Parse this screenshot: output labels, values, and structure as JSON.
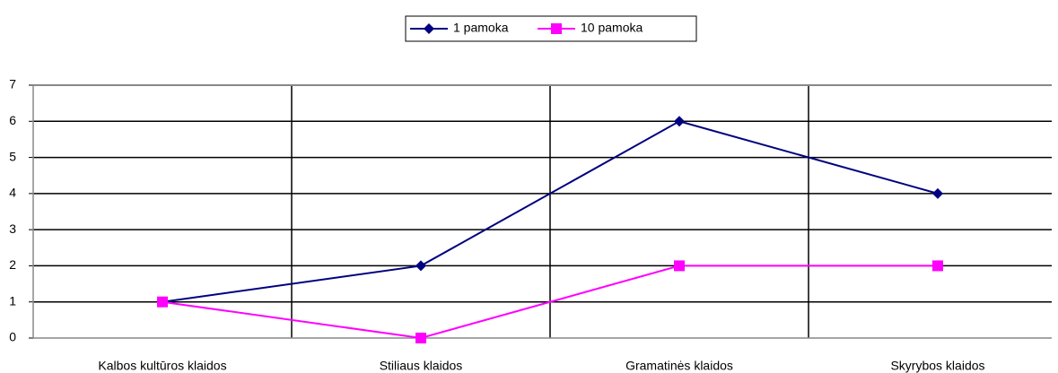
{
  "chart_data": {
    "type": "line",
    "categories": [
      "Kalbos kultūros klaidos",
      "Stiliaus klaidos",
      "Gramatinės klaidos",
      "Skyrybos klaidos"
    ],
    "series": [
      {
        "name": "1 pamoka",
        "color": "#000080",
        "marker": "diamond",
        "values": [
          1,
          2,
          6,
          4
        ]
      },
      {
        "name": "10 pamoka",
        "color": "#ff00ff",
        "marker": "square",
        "values": [
          1,
          0,
          2,
          2
        ]
      }
    ],
    "ylim": [
      0,
      7
    ],
    "yticks": [
      0,
      1,
      2,
      3,
      4,
      5,
      6,
      7
    ],
    "grid": true,
    "legend": "top"
  }
}
